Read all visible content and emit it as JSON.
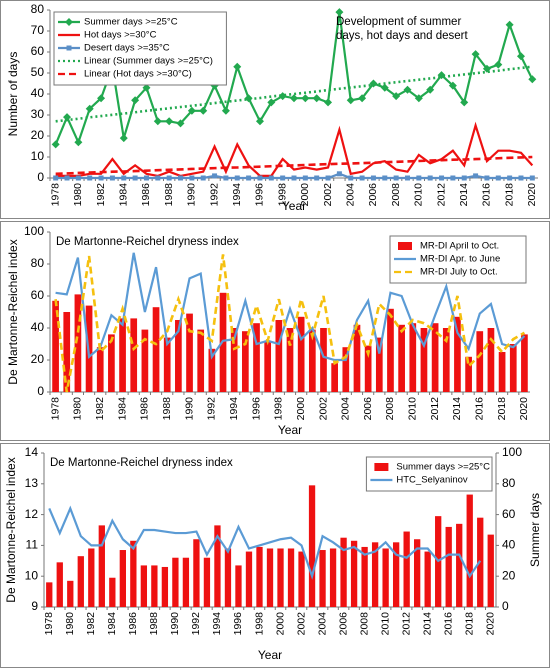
{
  "chart_data": [
    {
      "type": "line",
      "annotation": [
        "Development of summer",
        "days, hot days and desert"
      ],
      "xlabel": "Year",
      "ylabel": "Number of days",
      "categories": [
        "1978",
        null,
        "1980",
        null,
        "1982",
        null,
        "1984",
        null,
        "1986",
        null,
        "1988",
        null,
        "1990",
        null,
        "1992",
        null,
        "1994",
        null,
        "1996",
        null,
        "1998",
        null,
        "2000",
        null,
        "2002",
        null,
        "2004",
        null,
        "2006",
        null,
        "2008",
        null,
        "2010",
        null,
        "2012",
        null,
        "2014",
        null,
        "2016",
        null,
        "2018",
        null,
        "2020"
      ],
      "ylim": [
        0,
        80
      ],
      "yticks": [
        0,
        10,
        20,
        30,
        40,
        50,
        60,
        70,
        80
      ],
      "grid": false,
      "legend": "upper left",
      "series": [
        {
          "name": "Summer days >=25°C",
          "color": "#22a94f",
          "kind": "line",
          "style": "solid",
          "marker": "diamond",
          "values": [
            16,
            29,
            17,
            33,
            38,
            53,
            19,
            37,
            43,
            27,
            27,
            26,
            32,
            32,
            44,
            32,
            53,
            38,
            27,
            36,
            39,
            38,
            38,
            38,
            36,
            79,
            37,
            38,
            45,
            43,
            39,
            42,
            38,
            42,
            49,
            44,
            36,
            59,
            52,
            54,
            73,
            58,
            47
          ]
        },
        {
          "name": "Hot days >=30°C",
          "color": "#ee1111",
          "kind": "line",
          "style": "solid",
          "marker": "none",
          "values": [
            1,
            1,
            1,
            2,
            2,
            9,
            2,
            6,
            2,
            1,
            3,
            1,
            2,
            3,
            15,
            3,
            16,
            6,
            1,
            1,
            9,
            4,
            5,
            4,
            5,
            23,
            2,
            3,
            7,
            8,
            4,
            3,
            11,
            7,
            9,
            13,
            6,
            25,
            8,
            13,
            13,
            12,
            6
          ]
        },
        {
          "name": "Desert days >=35°C",
          "color": "#5b8fc7",
          "kind": "line",
          "style": "solid",
          "marker": "square",
          "values": [
            0,
            0,
            0,
            0,
            0,
            0,
            0,
            0,
            0,
            0,
            0,
            0,
            0,
            0,
            1,
            0,
            0,
            0,
            0,
            0,
            0,
            0,
            0,
            0,
            0,
            2,
            0,
            0,
            0,
            0,
            0,
            0,
            0,
            0,
            0,
            0,
            0,
            1,
            0,
            0,
            0,
            0,
            0
          ]
        },
        {
          "name": "Linear (Summer days >=25°C)",
          "color": "#22a94f",
          "kind": "line",
          "style": "dotted",
          "marker": "none",
          "values": [
            27.0,
            27.6,
            28.2,
            28.9,
            29.5,
            30.1,
            30.7,
            31.3,
            32.0,
            32.6,
            33.2,
            33.8,
            34.4,
            35.0,
            35.7,
            36.3,
            36.9,
            37.5,
            38.1,
            38.8,
            39.4,
            40.0,
            40.6,
            41.2,
            41.9,
            42.5,
            43.1,
            43.7,
            44.3,
            45.0,
            45.6,
            46.2,
            46.8,
            47.4,
            48.0,
            48.7,
            49.3,
            49.9,
            50.5,
            51.1,
            51.8,
            52.4,
            53.0
          ]
        },
        {
          "name": "Linear (Hot days >=30°C)",
          "color": "#ee1111",
          "kind": "line",
          "style": "dashed",
          "marker": "none",
          "values": [
            2.0,
            2.2,
            2.4,
            2.6,
            2.8,
            3.0,
            3.1,
            3.3,
            3.5,
            3.7,
            3.9,
            4.1,
            4.3,
            4.5,
            4.7,
            4.9,
            5.0,
            5.2,
            5.4,
            5.6,
            5.8,
            6.0,
            6.2,
            6.4,
            6.6,
            6.8,
            6.9,
            7.1,
            7.3,
            7.5,
            7.7,
            7.9,
            8.1,
            8.3,
            8.5,
            8.7,
            8.8,
            9.0,
            9.2,
            9.4,
            9.6,
            9.8,
            10.0
          ]
        }
      ]
    },
    {
      "type": "bar",
      "title": "De Martonne-Reichel dryness index",
      "xlabel": "Year",
      "ylabel": "De Martonne-Reichel index",
      "categories": [
        "1978",
        null,
        "1980",
        null,
        "1982",
        null,
        "1984",
        null,
        "1986",
        null,
        "1988",
        null,
        "1990",
        null,
        "1992",
        null,
        "1994",
        null,
        "1996",
        null,
        "1998",
        null,
        "2000",
        null,
        "2002",
        null,
        "2004",
        null,
        "2006",
        null,
        "2008",
        null,
        "2010",
        null,
        "2012",
        null,
        "2014",
        null,
        "2016",
        null,
        "2018",
        null,
        "2020"
      ],
      "ylim": [
        0,
        100
      ],
      "yticks": [
        0,
        20,
        40,
        60,
        80,
        100
      ],
      "grid": false,
      "legend": "upper right",
      "series": [
        {
          "name": "MR-DI  April to Oct.",
          "color": "#ee1111",
          "kind": "bar",
          "values": [
            57,
            50,
            61,
            54,
            28,
            36,
            46,
            46,
            39,
            53,
            34,
            45,
            49,
            39,
            27,
            62,
            40,
            38,
            43,
            32,
            45,
            40,
            47,
            39,
            40,
            18,
            28,
            42,
            29,
            34,
            52,
            42,
            43,
            40,
            43,
            40,
            47,
            22,
            38,
            40,
            25,
            30,
            36
          ]
        },
        {
          "name": "MR-DI Apr. to June",
          "color": "#5b9bd5",
          "kind": "line",
          "style": "solid",
          "marker": "none",
          "values": [
            62,
            61,
            84,
            22,
            28,
            48,
            42,
            87,
            50,
            78,
            30,
            38,
            71,
            74,
            22,
            32,
            33,
            57,
            30,
            32,
            30,
            52,
            33,
            40,
            22,
            20,
            20,
            45,
            57,
            24,
            62,
            60,
            42,
            29,
            48,
            66,
            37,
            27,
            49,
            55,
            30,
            28,
            35
          ]
        },
        {
          "name": "MR-DI July to Oct.",
          "color": "#f5c00f",
          "kind": "line",
          "style": "dashed",
          "marker": "none",
          "values": [
            58,
            0,
            37,
            85,
            25,
            32,
            52,
            27,
            33,
            30,
            38,
            58,
            38,
            37,
            32,
            86,
            27,
            30,
            54,
            32,
            58,
            29,
            58,
            35,
            60,
            18,
            22,
            42,
            24,
            55,
            48,
            38,
            45,
            43,
            38,
            32,
            60,
            16,
            23,
            33,
            25,
            33,
            37
          ]
        }
      ]
    },
    {
      "type": "bar",
      "title": "De Martonne-Reichel dryness index",
      "xlabel": "Year",
      "ylabel": "De Martonne-Reichel index",
      "y2label": "Summer days",
      "categories": [
        "1978",
        null,
        "1980",
        null,
        "1982",
        null,
        "1984",
        null,
        "1986",
        null,
        "1988",
        null,
        "1990",
        null,
        "1992",
        null,
        "1994",
        null,
        "1996",
        null,
        "1998",
        null,
        "2000",
        null,
        "2002",
        null,
        "2004",
        null,
        "2006",
        null,
        "2008",
        null,
        "2010",
        null,
        "2012",
        null,
        "2014",
        null,
        "2016",
        null,
        "2018",
        null,
        "2020"
      ],
      "ylim": [
        9,
        14
      ],
      "yticks": [
        9,
        10,
        11,
        12,
        13,
        14
      ],
      "y2lim": [
        0,
        100
      ],
      "y2ticks": [
        0,
        20,
        40,
        60,
        80,
        100
      ],
      "grid": false,
      "legend": "upper right",
      "series": [
        {
          "name": "Summer days >=25°C",
          "color": "#ee1111",
          "kind": "bar",
          "axis": "y2",
          "values": [
            16,
            29,
            17,
            33,
            38,
            53,
            19,
            37,
            43,
            27,
            27,
            26,
            32,
            32,
            44,
            32,
            53,
            38,
            27,
            36,
            39,
            38,
            38,
            38,
            36,
            79,
            37,
            38,
            45,
            43,
            39,
            42,
            38,
            42,
            49,
            44,
            36,
            59,
            52,
            54,
            73,
            58,
            47
          ]
        },
        {
          "name": "HTC_Selyaninov",
          "color": "#5b9bd5",
          "kind": "line",
          "style": "solid",
          "marker": "none",
          "values": [
            12.2,
            11.4,
            12.2,
            11.3,
            11.0,
            11.0,
            11.8,
            11.2,
            10.9,
            11.5,
            11.5,
            11.45,
            11.4,
            11.4,
            11.45,
            10.7,
            11.3,
            10.8,
            11.6,
            10.9,
            11.0,
            11.1,
            11.2,
            11.25,
            11.0,
            10.0,
            11.3,
            11.1,
            10.85,
            10.95,
            10.7,
            10.8,
            11.1,
            10.7,
            10.6,
            10.9,
            10.9,
            10.5,
            10.7,
            10.7,
            10.0,
            10.5,
            null
          ]
        }
      ]
    }
  ]
}
